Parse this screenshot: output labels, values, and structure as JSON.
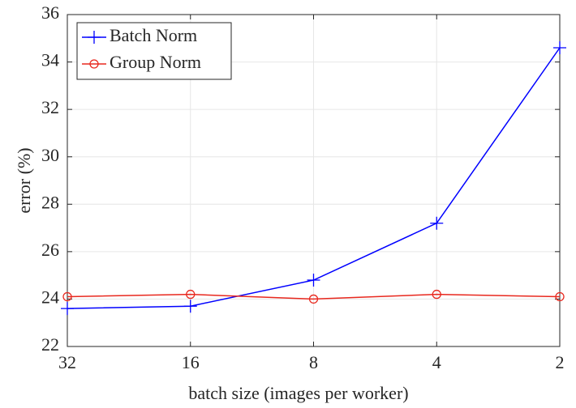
{
  "chart_data": {
    "type": "line",
    "categories": [
      "32",
      "16",
      "8",
      "4",
      "2"
    ],
    "x_label": "batch size (images per worker)",
    "y_label": "error (%)",
    "series": [
      {
        "name": "Batch Norm",
        "color": "#0000ff",
        "marker": "plus",
        "values": [
          23.6,
          23.7,
          24.8,
          27.2,
          34.6
        ]
      },
      {
        "name": "Group Norm",
        "color": "#e8281e",
        "marker": "circle",
        "values": [
          24.1,
          24.2,
          24.0,
          24.2,
          24.1
        ]
      }
    ],
    "ylim": [
      22,
      36
    ],
    "yticks": [
      22,
      24,
      26,
      28,
      30,
      32,
      34,
      36
    ],
    "grid": true,
    "legend": "top-left"
  }
}
